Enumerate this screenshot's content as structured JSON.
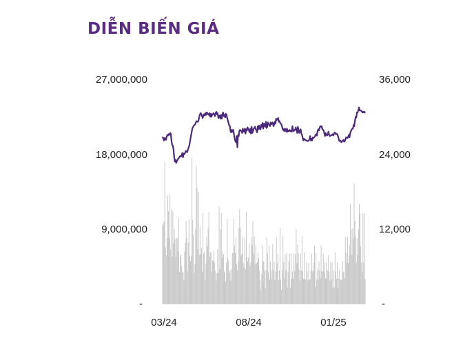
{
  "title": "DIỄN BIẾN GIÁ",
  "chart_data": {
    "type": "bar+line",
    "title": "DIỄN BIẾN GIÁ",
    "left_axis": {
      "ticks": [
        "27,000,000",
        "18,000,000",
        "9,000,000",
        "-"
      ],
      "values": [
        27000000,
        18000000,
        9000000,
        0
      ],
      "ylim": [
        0,
        27000000
      ]
    },
    "right_axis": {
      "ticks": [
        "36,000",
        "24,000",
        "12,000",
        "-"
      ],
      "values": [
        36000,
        24000,
        12000,
        0
      ],
      "ylim": [
        0,
        36000
      ]
    },
    "x_ticks": [
      "03/24",
      "08/24",
      "01/25"
    ],
    "x_tick_index": [
      2,
      107,
      222
    ],
    "grid": false,
    "legend": "none",
    "colors": {
      "line": "#4b2a7b",
      "bars": "#c8c8c8",
      "title": "#5b2c83"
    },
    "series": [
      {
        "type": "bar",
        "axis": "left",
        "values": [
          9542000,
          9755000,
          10032000,
          17016000,
          6865000,
          5898000,
          7956000,
          13087000,
          11233000,
          7990000,
          13287000,
          6618000,
          11452000,
          5768000,
          11213000,
          7346000,
          9085000,
          7845000,
          5711000,
          8022000,
          7931000,
          6398000,
          10418000,
          3880000,
          5719000,
          6015000,
          4599000,
          3846000,
          3915000,
          2920000,
          6346000,
          7409000,
          10002000,
          8009000,
          3979000,
          7436000,
          10188000,
          5837000,
          5213000,
          5808000,
          17695000,
          10189000,
          8357000,
          3780000,
          4846000,
          9024000,
          16706000,
          14031000,
          6653000,
          13545000,
          5911000,
          9287000,
          6049000,
          6779000,
          3945000,
          11013000,
          6115000,
          6347000,
          2868000,
          4924000,
          8126000,
          7003000,
          9174000,
          11087000,
          5733000,
          6312000,
          6165000,
          3861000,
          5286000,
          5219000,
          6416000,
          4999000,
          4014000,
          2835000,
          3740000,
          6617000,
          3771000,
          11768000,
          4262000,
          9066000,
          10999000,
          5611000,
          6452000,
          6019000,
          4001000,
          3811000,
          2734000,
          5017000,
          10294000,
          5591000,
          5215000,
          3826000,
          4133000,
          2852000,
          4223000,
          6162000,
          6148000,
          10289000,
          7092000,
          6133000,
          8020000,
          4829000,
          4071000,
          5193000,
          9136000,
          11512000,
          9269000,
          5860000,
          6101000,
          8122000,
          4955000,
          4442000,
          8026000,
          4209000,
          11151000,
          5662000,
          5185000,
          5624000,
          7314000,
          4624000,
          5010000,
          8066000,
          7125000,
          10053000,
          6144000,
          8193000,
          4815000,
          7134000,
          4919000,
          5085000,
          6269000,
          5542000,
          4040000,
          2892000,
          1783000,
          3618000,
          7065000,
          5219000,
          5066000,
          4034000,
          1910000,
          4109000,
          8060000,
          6143000,
          3874000,
          7077000,
          2990000,
          5146000,
          4093000,
          3059000,
          7208000,
          4154000,
          5139000,
          2926000,
          3951000,
          8130000,
          4963000,
          6086000,
          2922000,
          4069000,
          9235000,
          2979000,
          1770000,
          4125000,
          8232000,
          5071000,
          3085000,
          5996000,
          4106000,
          6171000,
          1993000,
          3880000,
          5134000,
          6094000,
          1985000,
          6114000,
          3068000,
          3931000,
          3057000,
          6142000,
          4032000,
          6015000,
          9026000,
          4950000,
          7165000,
          6157000,
          4142000,
          2892000,
          6099000,
          4046000,
          8226000,
          3986000,
          3063000,
          6232000,
          3020000,
          2976000,
          5058000,
          3971000,
          2894000,
          4994000,
          2993000,
          2969000,
          4118000,
          6122000,
          3941000,
          5044000,
          4005000,
          7025000,
          2064000,
          6190000,
          3001000,
          4164000,
          2949000,
          5158000,
          4035000,
          3105000,
          7075000,
          3937000,
          4000000,
          6101000,
          3902000,
          4991000,
          3127000,
          5055000,
          3016000,
          4087000,
          5923000,
          3959000,
          2856000,
          5161000,
          3016000,
          5057000,
          2020000,
          4092000,
          2032000,
          6236000,
          3946000,
          3079000,
          5022000,
          1951000,
          3124000,
          4136000,
          2995000,
          2951000,
          2912000,
          5151000,
          3940000,
          3928000,
          3115000,
          8151000,
          6180000,
          5015000,
          8128000,
          4934000,
          5890000,
          7055000,
          12052000,
          9003000,
          5959000,
          9120000,
          7934000,
          14553000,
          10026000,
          8156000,
          4964000,
          7922000,
          5930000,
          9024000,
          12035000,
          10939000,
          6964000,
          5022000,
          3942000,
          10947000,
          5012000,
          10962000,
          3033000
        ],
        "color": "#c8c8c8"
      },
      {
        "type": "line",
        "axis": "right",
        "color": "#4b2a7b",
        "values": [
          26900,
          26600,
          26300,
          26700,
          26600,
          26400,
          26900,
          27200,
          27100,
          27300,
          27200,
          27500,
          27400,
          26300,
          25600,
          25500,
          24900,
          23700,
          22900,
          23200,
          22700,
          23000,
          23200,
          23400,
          23500,
          23700,
          23800,
          23700,
          23900,
          24300,
          23600,
          24200,
          24100,
          24300,
          24600,
          24600,
          24400,
          24700,
          25100,
          25400,
          25900,
          26600,
          27200,
          27800,
          28300,
          28500,
          28700,
          28800,
          28900,
          29200,
          29400,
          29300,
          29300,
          29600,
          30100,
          30500,
          30700,
          30500,
          30200,
          29900,
          30300,
          30500,
          30300,
          30700,
          30400,
          30800,
          30700,
          30500,
          30400,
          30700,
          30100,
          30600,
          30100,
          30500,
          30500,
          30700,
          30400,
          30200,
          30700,
          30900,
          30500,
          30700,
          29900,
          30100,
          30300,
          29800,
          30400,
          29800,
          30500,
          30800,
          30200,
          30400,
          30000,
          30600,
          30400,
          29900,
          29500,
          29100,
          28700,
          28600,
          27700,
          27600,
          28000,
          27700,
          28000,
          27300,
          26600,
          26200,
          26000,
          27000,
          25200,
          27200,
          27000,
          27900,
          28000,
          27900,
          27800,
          27500,
          28200,
          27800,
          27700,
          28200,
          27400,
          28100,
          27900,
          28400,
          28100,
          27900,
          27600,
          28200,
          27400,
          28500,
          27500,
          27800,
          28200,
          28300,
          28500,
          28100,
          27900,
          27600,
          28600,
          28100,
          28700,
          28200,
          28100,
          28800,
          28500,
          29100,
          28200,
          29000,
          28900,
          28500,
          29300,
          28300,
          28500,
          29200,
          28900,
          28800,
          28600,
          29200,
          28900,
          29100,
          29200,
          28600,
          28800,
          29300,
          29000,
          29800,
          29600,
          29700,
          29900,
          29300,
          29400,
          29100,
          29000,
          28800,
          28400,
          28000,
          28100,
          27800,
          28200,
          28000,
          27700,
          28200,
          27700,
          27900,
          27800,
          28000,
          27800,
          27900,
          27700,
          28600,
          27900,
          27800,
          28000,
          28000,
          28400,
          28000,
          27500,
          28500,
          28000,
          27500,
          27800,
          28100,
          27500,
          27200,
          26800,
          26300,
          26600,
          26400,
          26400,
          26300,
          26300,
          26200,
          26200,
          26300,
          26500,
          27000,
          26300,
          26600,
          26300,
          26800,
          26700,
          26800,
          26900,
          27200,
          27300,
          27100,
          27800,
          28100,
          27900,
          28300,
          28600,
          28500,
          28600,
          28100,
          28000,
          27900,
          27400,
          27000,
          27500,
          27200,
          27100,
          27300,
          27700,
          27200,
          27000,
          27100,
          27100,
          27200,
          27300,
          27100,
          27300,
          27600,
          27500,
          27300,
          27400,
          27300,
          27000,
          26600,
          26200,
          26300,
          26200,
          26000,
          26200,
          26200,
          26400,
          26100,
          26200,
          26500,
          26800,
          26800,
          26700,
          26900,
          27200,
          26800,
          27500,
          27800,
          28000,
          28200,
          28200,
          28800,
          28600,
          29500,
          30100,
          30000,
          30800,
          30800,
          31200,
          31600,
          31100,
          31100,
          31100,
          31000,
          30800,
          30900,
          30800,
          30900,
          30700
        ]
      }
    ]
  }
}
